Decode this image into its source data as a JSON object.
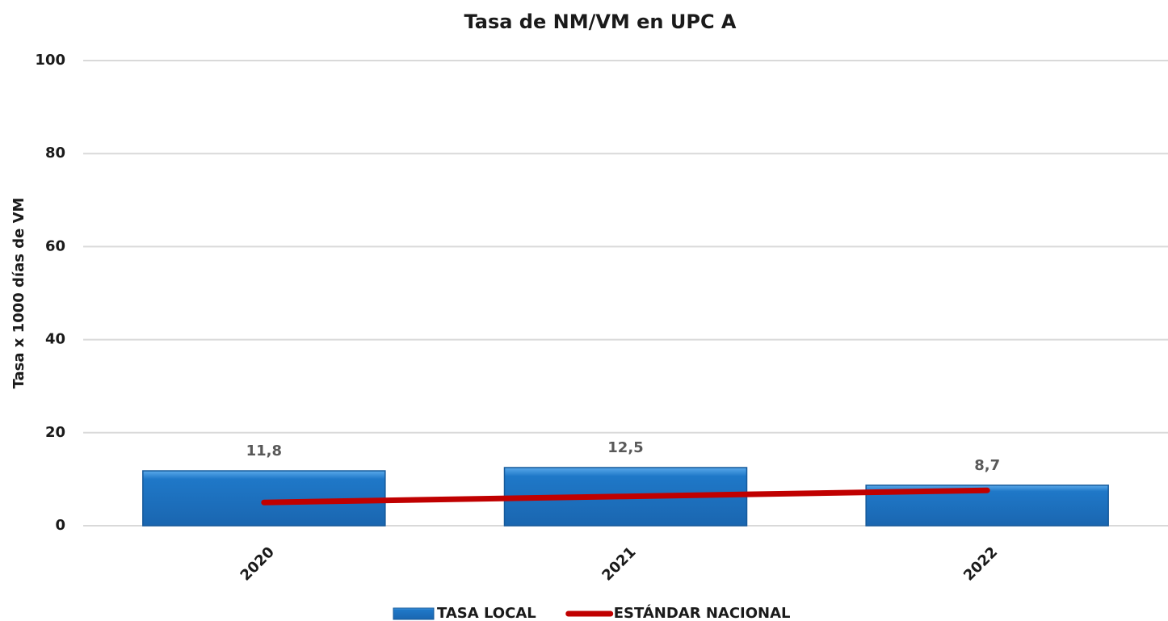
{
  "chart_data": {
    "type": "bar",
    "title": "Tasa de NM/VM en UPC A",
    "y_label": "Tasa x 1000 días de VM",
    "categories": [
      "2020",
      "2021",
      "2022"
    ],
    "series": [
      {
        "name": "TASA LOCAL",
        "type": "bar",
        "color": "#1f78c8",
        "values": [
          11.8,
          12.5,
          8.7
        ],
        "value_labels": [
          "11,8",
          "12,5",
          "8,7"
        ]
      },
      {
        "name": "ESTÁNDAR NACIONAL",
        "type": "line",
        "color": "#c00000",
        "values": [
          5,
          6.3,
          7.6
        ]
      }
    ],
    "ylim": [
      0,
      100
    ],
    "yticks": [
      0,
      20,
      40,
      60,
      80,
      100
    ],
    "grid": true,
    "legend": "bottom"
  }
}
